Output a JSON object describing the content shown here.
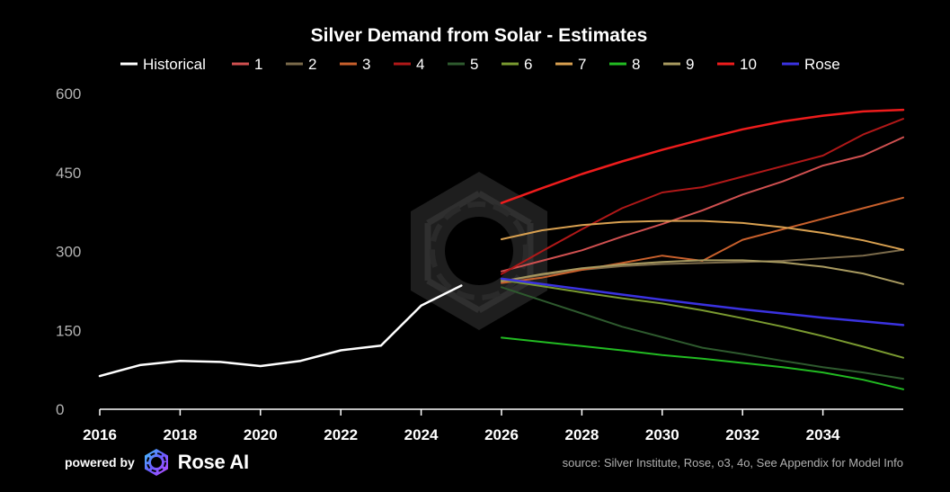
{
  "footer": {
    "powered_by": "powered by",
    "brand": "Rose AI",
    "source": "source: Silver Institute, Rose, o3, 4o, See Appendix for Model Info"
  },
  "chart_data": {
    "type": "line",
    "title": "Silver Demand from Solar - Estimates",
    "xlabel": "",
    "ylabel": "",
    "xlim": [
      2016,
      2036
    ],
    "ylim": [
      0,
      600
    ],
    "yticks": [
      0,
      150,
      300,
      450,
      600
    ],
    "xticks": [
      2016,
      2018,
      2020,
      2022,
      2024,
      2026,
      2028,
      2030,
      2032,
      2034
    ],
    "grid": false,
    "legend_position": "top",
    "series": [
      {
        "name": "Historical",
        "color": "#ffffff",
        "x": [
          2016,
          2017,
          2018,
          2019,
          2020,
          2021,
          2022,
          2023,
          2024,
          2025
        ],
        "values": [
          63,
          84,
          92,
          90,
          82,
          92,
          112,
          121,
          197,
          235
        ]
      },
      {
        "name": "1",
        "color": "#d05050",
        "x": [
          2026,
          2027,
          2028,
          2029,
          2030,
          2031,
          2032,
          2033,
          2034,
          2035,
          2036
        ],
        "values": [
          262,
          282,
          302,
          328,
          352,
          378,
          408,
          433,
          463,
          482,
          517
        ]
      },
      {
        "name": "2",
        "color": "#7a6a4a",
        "x": [
          2026,
          2027,
          2028,
          2029,
          2030,
          2031,
          2032,
          2033,
          2034,
          2035,
          2036
        ],
        "values": [
          243,
          255,
          265,
          272,
          276,
          278,
          280,
          282,
          287,
          292,
          303
        ]
      },
      {
        "name": "3",
        "color": "#c8602c",
        "x": [
          2026,
          2027,
          2028,
          2029,
          2030,
          2031,
          2032,
          2033,
          2034,
          2035,
          2036
        ],
        "values": [
          240,
          250,
          265,
          278,
          292,
          282,
          322,
          342,
          362,
          382,
          402
        ]
      },
      {
        "name": "4",
        "color": "#b01818",
        "x": [
          2026,
          2027,
          2028,
          2029,
          2030,
          2031,
          2032,
          2033,
          2034,
          2035,
          2036
        ],
        "values": [
          257,
          300,
          342,
          382,
          412,
          422,
          442,
          462,
          482,
          522,
          552
        ]
      },
      {
        "name": "5",
        "color": "#2e5a2e",
        "x": [
          2026,
          2027,
          2028,
          2029,
          2030,
          2031,
          2032,
          2033,
          2034,
          2035,
          2036
        ],
        "values": [
          232,
          207,
          182,
          157,
          137,
          117,
          105,
          92,
          80,
          70,
          58
        ]
      },
      {
        "name": "6",
        "color": "#7a9a30",
        "x": [
          2026,
          2027,
          2028,
          2029,
          2030,
          2031,
          2032,
          2033,
          2034,
          2035,
          2036
        ],
        "values": [
          246,
          234,
          222,
          211,
          201,
          188,
          173,
          157,
          139,
          119,
          98
        ]
      },
      {
        "name": "7",
        "color": "#d8a050",
        "x": [
          2026,
          2027,
          2028,
          2029,
          2030,
          2031,
          2032,
          2033,
          2034,
          2035,
          2036
        ],
        "values": [
          323,
          340,
          350,
          356,
          358,
          358,
          354,
          346,
          335,
          321,
          303
        ]
      },
      {
        "name": "8",
        "color": "#22bb22",
        "x": [
          2026,
          2027,
          2028,
          2029,
          2030,
          2031,
          2032,
          2033,
          2034,
          2035,
          2036
        ],
        "values": [
          136,
          128,
          120,
          112,
          103,
          96,
          88,
          80,
          70,
          56,
          38
        ]
      },
      {
        "name": "9",
        "color": "#a89a60",
        "x": [
          2026,
          2027,
          2028,
          2029,
          2030,
          2031,
          2032,
          2033,
          2034,
          2035,
          2036
        ],
        "values": [
          243,
          257,
          268,
          275,
          280,
          283,
          283,
          279,
          271,
          258,
          238
        ]
      },
      {
        "name": "10",
        "color": "#ee1c1c",
        "x": [
          2026,
          2027,
          2028,
          2029,
          2030,
          2031,
          2032,
          2033,
          2034,
          2035,
          2036
        ],
        "values": [
          392,
          420,
          447,
          471,
          493,
          513,
          532,
          547,
          558,
          566,
          569
        ]
      },
      {
        "name": "Rose",
        "color": "#3a32e0",
        "x": [
          2026,
          2027,
          2028,
          2029,
          2030,
          2031,
          2032,
          2033,
          2034,
          2035,
          2036
        ],
        "values": [
          248,
          238,
          228,
          218,
          208,
          199,
          190,
          182,
          174,
          167,
          160
        ]
      }
    ]
  }
}
